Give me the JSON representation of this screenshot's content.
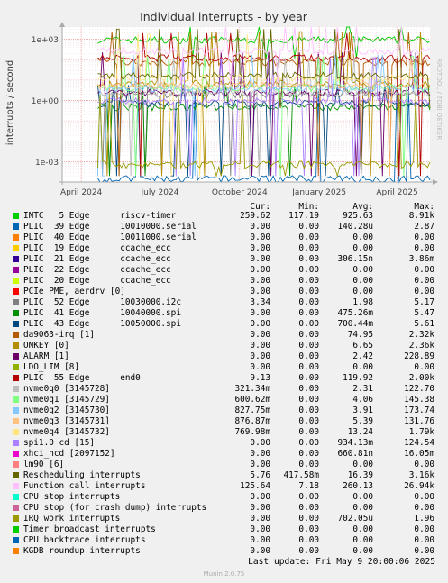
{
  "chart_data": {
    "type": "line",
    "title": "Individual interrupts - by year",
    "ylabel": "interrupts / second",
    "watermark": "RRDTOOL / TOBI OETIKER",
    "y_scale": "log",
    "ylim": [
      0.0001,
      4000
    ],
    "y_ticks": [
      {
        "label": "1e+03",
        "value": 1000
      },
      {
        "label": "1e+00",
        "value": 1
      },
      {
        "label": "1e-03",
        "value": 0.001
      }
    ],
    "x_range": [
      "2024-03-10",
      "2025-05-09"
    ],
    "x_ticks": [
      {
        "label": "April 2024",
        "date": "2024-04-01"
      },
      {
        "label": "July 2024",
        "date": "2024-07-01"
      },
      {
        "label": "October 2024",
        "date": "2024-10-01"
      },
      {
        "label": "January 2025",
        "date": "2025-01-01"
      },
      {
        "label": "April 2025",
        "date": "2025-04-01"
      }
    ],
    "grid": true,
    "columns": {
      "cur": "Cur:",
      "min": "Min:",
      "avg": "Avg:",
      "max": "Max:"
    },
    "series": [
      {
        "name": "INTC   5 Edge      riscv-timer",
        "color": "#00cc00",
        "cur": "259.62",
        "min": "117.19",
        "avg": "925.63",
        "max": "8.91k"
      },
      {
        "name": "PLIC  39 Edge      10010000.serial",
        "color": "#0066b3",
        "cur": "0.00",
        "min": "0.00",
        "avg": "140.28u",
        "max": "2.87"
      },
      {
        "name": "PLIC  40 Edge      10011000.serial",
        "color": "#ff8000",
        "cur": "0.00",
        "min": "0.00",
        "avg": "0.00",
        "max": "0.00"
      },
      {
        "name": "PLIC  19 Edge      ccache_ecc",
        "color": "#ffcc00",
        "cur": "0.00",
        "min": "0.00",
        "avg": "0.00",
        "max": "0.00"
      },
      {
        "name": "PLIC  21 Edge      ccache_ecc",
        "color": "#330099",
        "cur": "0.00",
        "min": "0.00",
        "avg": "306.15n",
        "max": "3.86m"
      },
      {
        "name": "PLIC  22 Edge      ccache_ecc",
        "color": "#990099",
        "cur": "0.00",
        "min": "0.00",
        "avg": "0.00",
        "max": "0.00"
      },
      {
        "name": "PLIC  20 Edge      ccache_ecc",
        "color": "#ccff00",
        "cur": "0.00",
        "min": "0.00",
        "avg": "0.00",
        "max": "0.00"
      },
      {
        "name": "PCIe PME, aerdrv [0]",
        "color": "#ff0000",
        "cur": "0.00",
        "min": "0.00",
        "avg": "0.00",
        "max": "0.00"
      },
      {
        "name": "PLIC  52 Edge      10030000.i2c",
        "color": "#808080",
        "cur": "3.34",
        "min": "0.00",
        "avg": "1.98",
        "max": "5.17"
      },
      {
        "name": "PLIC  41 Edge      10040000.spi",
        "color": "#008f00",
        "cur": "0.00",
        "min": "0.00",
        "avg": "475.26m",
        "max": "5.47"
      },
      {
        "name": "PLIC  43 Edge      10050000.spi",
        "color": "#00487d",
        "cur": "0.00",
        "min": "0.00",
        "avg": "700.44m",
        "max": "5.61"
      },
      {
        "name": "da9063-irq [1]",
        "color": "#b35a00",
        "cur": "0.00",
        "min": "0.00",
        "avg": "74.95",
        "max": "2.32k"
      },
      {
        "name": "ONKEY [0]",
        "color": "#b38f00",
        "cur": "0.00",
        "min": "0.00",
        "avg": "6.65",
        "max": "2.36k"
      },
      {
        "name": "ALARM [1]",
        "color": "#6b006b",
        "cur": "0.00",
        "min": "0.00",
        "avg": "2.42",
        "max": "228.89"
      },
      {
        "name": "LDO_LIM [8]",
        "color": "#8fb300",
        "cur": "0.00",
        "min": "0.00",
        "avg": "0.00",
        "max": "0.00"
      },
      {
        "name": "PLIC  55 Edge      end0",
        "color": "#b30000",
        "cur": "9.13",
        "min": "0.00",
        "avg": "119.92",
        "max": "2.00k"
      },
      {
        "name": "nvme0q0 [3145728]",
        "color": "#bebebe",
        "cur": "321.34m",
        "min": "0.00",
        "avg": "2.31",
        "max": "122.70"
      },
      {
        "name": "nvme0q1 [3145729]",
        "color": "#80ff80",
        "cur": "600.62m",
        "min": "0.00",
        "avg": "4.06",
        "max": "145.38"
      },
      {
        "name": "nvme0q2 [3145730]",
        "color": "#80c9ff",
        "cur": "827.75m",
        "min": "0.00",
        "avg": "3.91",
        "max": "173.74"
      },
      {
        "name": "nvme0q3 [3145731]",
        "color": "#ffc080",
        "cur": "876.87m",
        "min": "0.00",
        "avg": "5.39",
        "max": "131.76"
      },
      {
        "name": "nvme0q4 [3145732]",
        "color": "#ffe680",
        "cur": "769.98m",
        "min": "0.00",
        "avg": "13.24",
        "max": "1.79k"
      },
      {
        "name": "spi1.0 cd [15]",
        "color": "#aa80ff",
        "cur": "0.00",
        "min": "0.00",
        "avg": "934.13m",
        "max": "124.54"
      },
      {
        "name": "xhci_hcd [2097152]",
        "color": "#ee00cc",
        "cur": "0.00",
        "min": "0.00",
        "avg": "660.81n",
        "max": "16.05m"
      },
      {
        "name": "lm90 [6]",
        "color": "#ff8080",
        "cur": "0.00",
        "min": "0.00",
        "avg": "0.00",
        "max": "0.00"
      },
      {
        "name": "Rescheduling interrupts",
        "color": "#666600",
        "cur": "5.76",
        "min": "417.58m",
        "avg": "16.39",
        "max": "3.16k"
      },
      {
        "name": "Function call interrupts",
        "color": "#ffbfff",
        "cur": "125.64",
        "min": "7.18",
        "avg": "260.13",
        "max": "26.94k"
      },
      {
        "name": "CPU stop interrupts",
        "color": "#00ffcc",
        "cur": "0.00",
        "min": "0.00",
        "avg": "0.00",
        "max": "0.00"
      },
      {
        "name": "CPU stop (for crash dump) interrupts",
        "color": "#cc6699",
        "cur": "0.00",
        "min": "0.00",
        "avg": "0.00",
        "max": "0.00"
      },
      {
        "name": "IRQ work interrupts",
        "color": "#999900",
        "cur": "0.00",
        "min": "0.00",
        "avg": "702.05u",
        "max": "1.96"
      },
      {
        "name": "Timer broadcast interrupts",
        "color": "#00cc00",
        "cur": "0.00",
        "min": "0.00",
        "avg": "0.00",
        "max": "0.00"
      },
      {
        "name": "CPU backtrace interrupts",
        "color": "#0066b3",
        "cur": "0.00",
        "min": "0.00",
        "avg": "0.00",
        "max": "0.00"
      },
      {
        "name": "KGDB roundup interrupts",
        "color": "#ff8000",
        "cur": "0.00",
        "min": "0.00",
        "avg": "0.00",
        "max": "0.00"
      }
    ]
  },
  "footer": {
    "last_update": "Last update:  Fri May  9 20:00:06 2025",
    "munin": "Munin 2.0.75"
  }
}
